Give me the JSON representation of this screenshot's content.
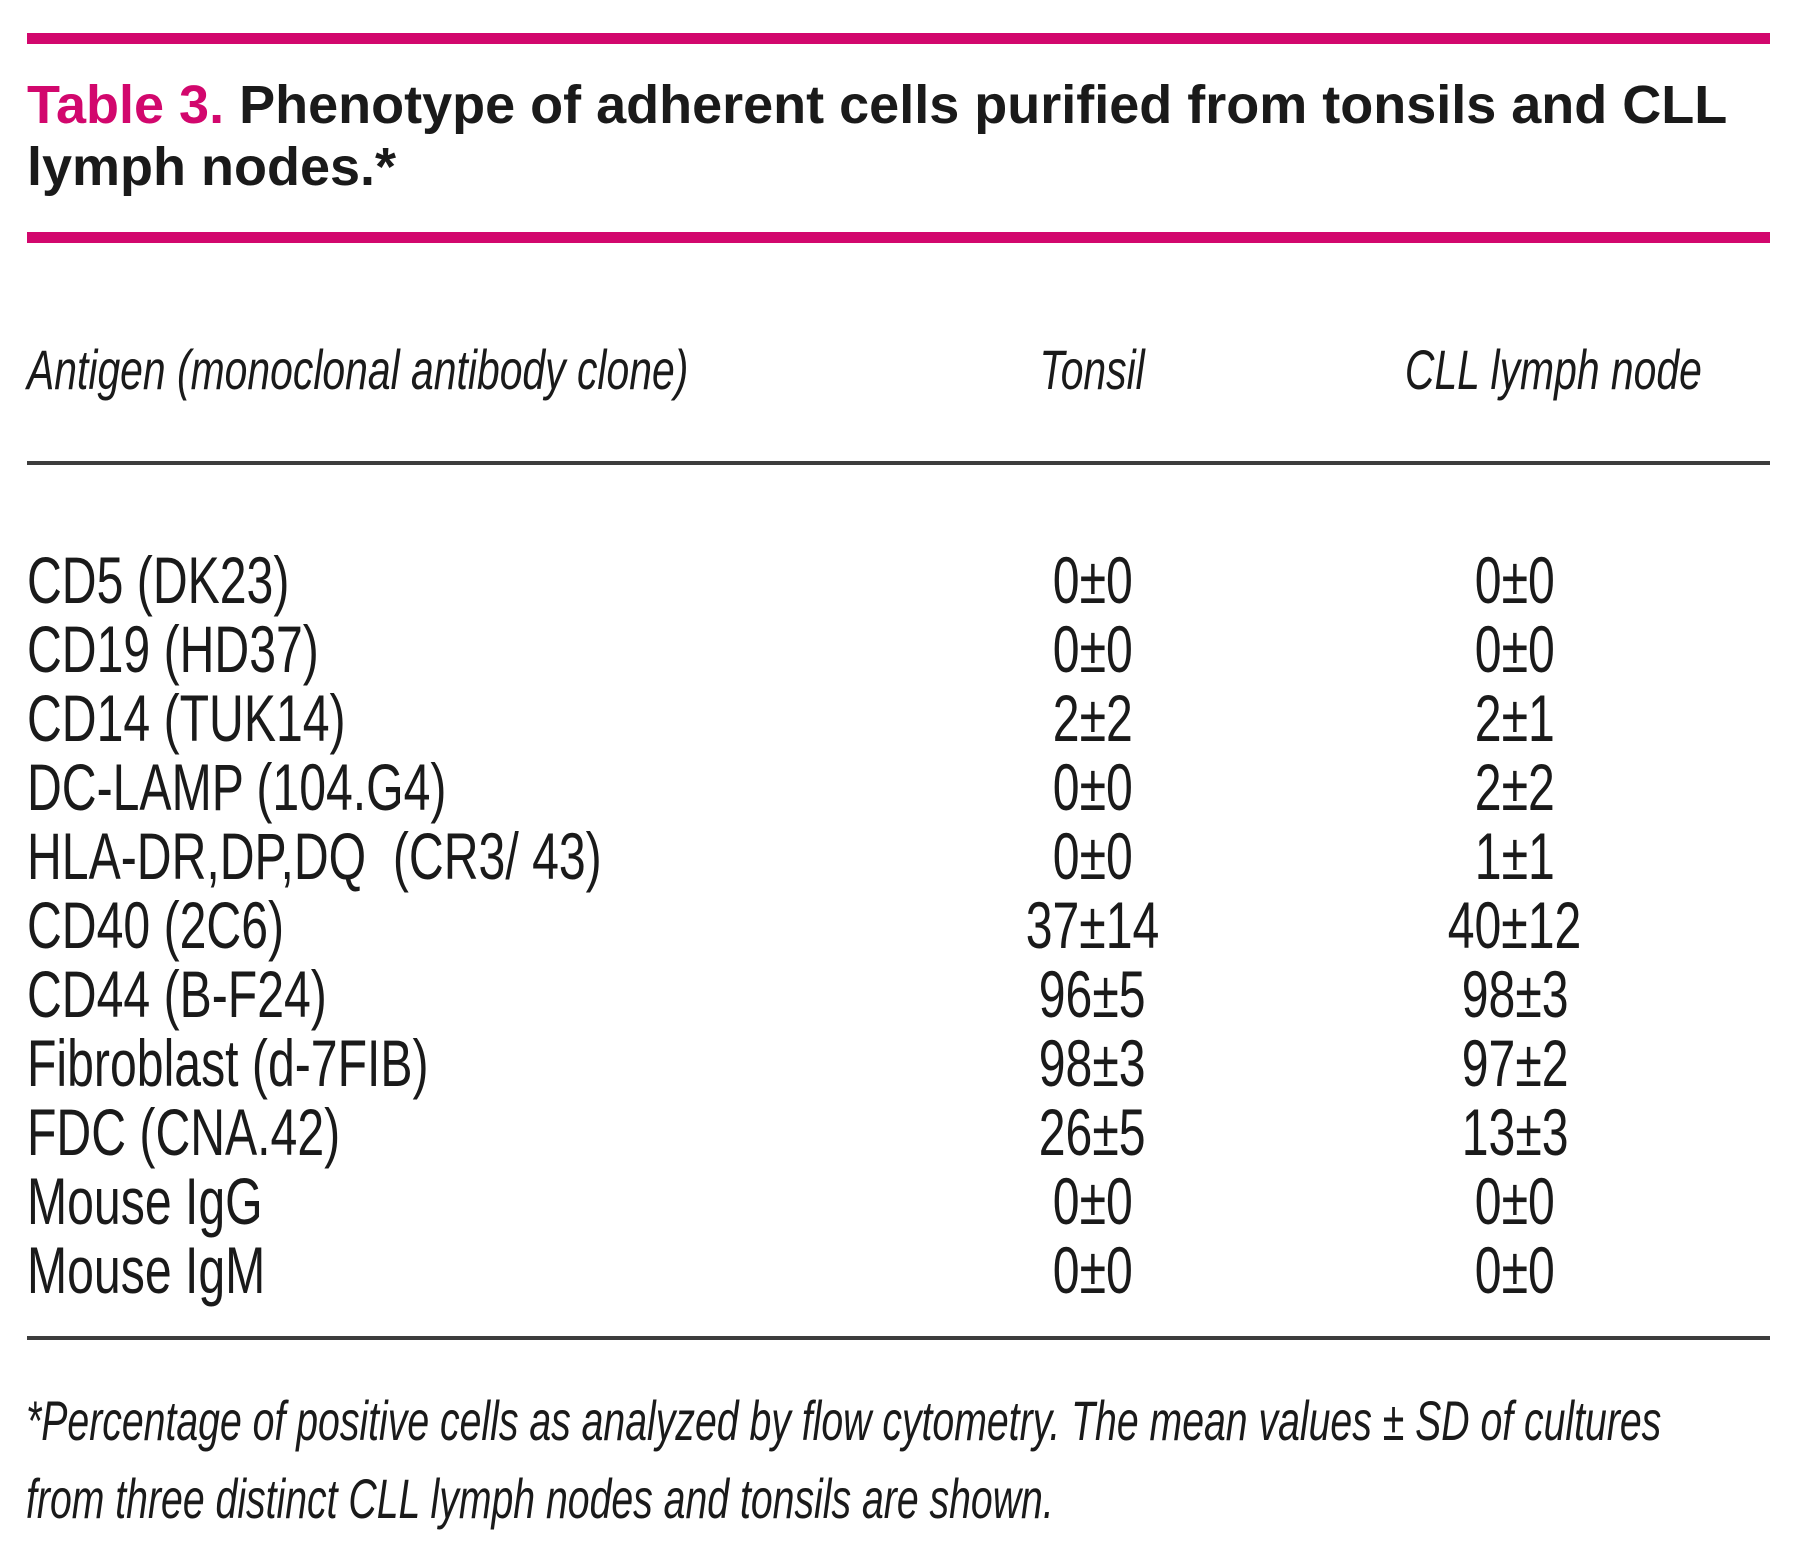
{
  "title": {
    "prefix": "Table 3.",
    "text": " Phenotype of adherent cells purified from tonsils and CLL lymph nodes.*"
  },
  "colors": {
    "accent": "#d2076d",
    "text": "#1a1a1a",
    "rule": "#3d3d3d"
  },
  "table": {
    "columns": [
      "Antigen (monoclonal antibody clone)",
      "Tonsil",
      "CLL lymph node"
    ],
    "rows": [
      {
        "antigen": "CD5 (DK23)",
        "tonsil": "0±0",
        "cll": "0±0"
      },
      {
        "antigen": "CD19 (HD37)",
        "tonsil": "0±0",
        "cll": "0±0"
      },
      {
        "antigen": "CD14 (TUK14)",
        "tonsil": "2±2",
        "cll": "2±1"
      },
      {
        "antigen": "DC-LAMP (104.G4)",
        "tonsil": "0±0",
        "cll": "2±2"
      },
      {
        "antigen": "HLA-DR,DP,DQ  (CR3/ 43)",
        "tonsil": "0±0",
        "cll": "1±1"
      },
      {
        "antigen": "CD40 (2C6)",
        "tonsil": "37±14",
        "cll": "40±12"
      },
      {
        "antigen": "CD44 (B-F24)",
        "tonsil": "96±5",
        "cll": "98±3"
      },
      {
        "antigen": "Fibroblast (d-7FIB)",
        "tonsil": "98±3",
        "cll": "97±2"
      },
      {
        "antigen": "FDC (CNA.42)",
        "tonsil": "26±5",
        "cll": "13±3"
      },
      {
        "antigen": "Mouse IgG",
        "tonsil": "0±0",
        "cll": "0±0"
      },
      {
        "antigen": "Mouse IgM",
        "tonsil": "0±0",
        "cll": "0±0"
      }
    ]
  },
  "footnote": "*Percentage of positive cells as analyzed by flow cytometry. The mean values ± SD of cultures from three distinct CLL lymph nodes and tonsils are shown."
}
